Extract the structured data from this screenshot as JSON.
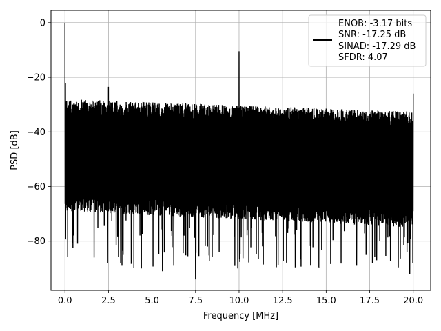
{
  "chart_data": {
    "type": "line",
    "title": "",
    "xlabel": "Frequency [MHz]",
    "ylabel": "PSD [dB]",
    "xlim": [
      -0.8,
      21
    ],
    "ylim": [
      -98,
      4.5
    ],
    "xticks": [
      0.0,
      2.5,
      5.0,
      7.5,
      10.0,
      12.5,
      15.0,
      17.5,
      20.0
    ],
    "xtick_labels": [
      "0.0",
      "2.5",
      "5.0",
      "7.5",
      "10.0",
      "12.5",
      "15.0",
      "17.5",
      "20.0"
    ],
    "yticks": [
      0,
      -20,
      -40,
      -60,
      -80
    ],
    "ytick_labels": [
      "0",
      "−20",
      "−40",
      "−60",
      "−80"
    ],
    "grid": true,
    "legend": {
      "placement": "upper right",
      "entries": [
        "ENOB: -3.17 bits",
        "SNR: -17.25 dB",
        "SINAD: -17.29 dB",
        "SFDR: 4.07"
      ]
    },
    "series": [
      {
        "color": "#000000",
        "x_range": [
          0,
          20
        ],
        "noise_band": {
          "upper_at_0": -28,
          "upper_at_20": -32.5,
          "lower_at_0": -67,
          "lower_at_20": -73,
          "deep_dip_floor": -92
        },
        "peaks": [
          {
            "x": 0.0,
            "y": 0
          },
          {
            "x": 0.03,
            "y": -22
          },
          {
            "x": 2.5,
            "y": -23.5
          },
          {
            "x": 10.0,
            "y": -10.5
          },
          {
            "x": 20.0,
            "y": -26
          }
        ],
        "dips": [
          {
            "x": 2.45,
            "y": -88
          },
          {
            "x": 3.2,
            "y": -88
          },
          {
            "x": 5.6,
            "y": -91
          },
          {
            "x": 6.25,
            "y": -89
          },
          {
            "x": 7.5,
            "y": -94
          },
          {
            "x": 16.75,
            "y": -89
          },
          {
            "x": 17.9,
            "y": -87
          },
          {
            "x": 19.8,
            "y": -92
          }
        ]
      }
    ]
  }
}
